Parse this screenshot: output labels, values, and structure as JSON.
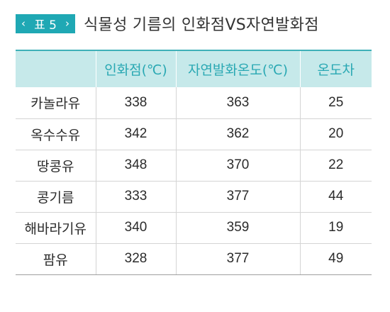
{
  "badge": {
    "left_chevron": "‹",
    "label": "표 5",
    "right_chevron": "›"
  },
  "title": "식물성 기름의 인화점VS자연발화점",
  "table": {
    "headers": [
      "",
      "인화점(℃)",
      "자연발화온도(℃)",
      "온도차"
    ],
    "rows": [
      [
        "카놀라유",
        "338",
        "363",
        "25"
      ],
      [
        "옥수수유",
        "342",
        "362",
        "20"
      ],
      [
        "땅콩유",
        "348",
        "370",
        "22"
      ],
      [
        "콩기름",
        "333",
        "377",
        "44"
      ],
      [
        "해바라기유",
        "340",
        "359",
        "19"
      ],
      [
        "팜유",
        "328",
        "377",
        "49"
      ]
    ]
  },
  "colors": {
    "accent": "#1fa8b4",
    "header_bg": "#c6e9ea",
    "header_text": "#29a8b3"
  }
}
